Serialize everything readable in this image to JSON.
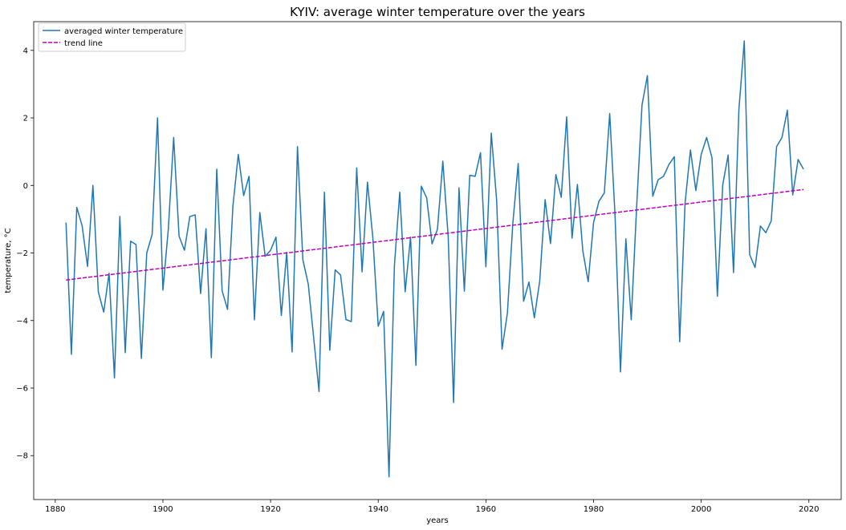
{
  "chart_data": {
    "type": "line",
    "title": "KYIV: average winter temperature over the years",
    "xlabel": "years",
    "ylabel": "temperature, °C",
    "xlim": [
      1876,
      2026
    ],
    "ylim": [
      -9.3,
      4.85
    ],
    "x_ticks": [
      1880,
      1900,
      1920,
      1940,
      1960,
      1980,
      2000,
      2020
    ],
    "x_tick_labels": [
      "1880",
      "1900",
      "1920",
      "1940",
      "1960",
      "1980",
      "2000",
      "2020"
    ],
    "y_ticks": [
      4,
      2,
      0,
      -2,
      -4,
      -6,
      -8
    ],
    "y_tick_labels": [
      "4",
      "2",
      "0",
      "−2",
      "−4",
      "−6",
      "−8"
    ],
    "grid": false,
    "legend_position": "upper-left",
    "series": [
      {
        "name": "averaged winter temperature",
        "color": "#1f77b4",
        "style": "solid",
        "x": [
          1882,
          1883,
          1884,
          1885,
          1886,
          1887,
          1888,
          1889,
          1890,
          1891,
          1892,
          1893,
          1894,
          1895,
          1896,
          1897,
          1898,
          1899,
          1900,
          1901,
          1902,
          1903,
          1904,
          1905,
          1906,
          1907,
          1908,
          1909,
          1910,
          1911,
          1912,
          1913,
          1914,
          1915,
          1916,
          1917,
          1918,
          1919,
          1920,
          1921,
          1922,
          1923,
          1924,
          1925,
          1926,
          1927,
          1928,
          1929,
          1930,
          1931,
          1932,
          1933,
          1934,
          1935,
          1936,
          1937,
          1938,
          1939,
          1940,
          1941,
          1942,
          1943,
          1944,
          1945,
          1946,
          1947,
          1948,
          1949,
          1950,
          1951,
          1952,
          1953,
          1954,
          1955,
          1956,
          1957,
          1958,
          1959,
          1960,
          1961,
          1962,
          1963,
          1964,
          1965,
          1966,
          1967,
          1968,
          1969,
          1970,
          1971,
          1972,
          1973,
          1974,
          1975,
          1976,
          1977,
          1978,
          1979,
          1980,
          1981,
          1982,
          1983,
          1984,
          1985,
          1986,
          1987,
          1988,
          1989,
          1990,
          1991,
          1992,
          1993,
          1994,
          1995,
          1996,
          1997,
          1998,
          1999,
          2000,
          2001,
          2002,
          2003,
          2004,
          2005,
          2006,
          2007,
          2008,
          2009,
          2010,
          2011,
          2012,
          2013,
          2014,
          2015,
          2016,
          2017,
          2018,
          2019
        ],
        "values": [
          -1.1,
          -5.0,
          -0.65,
          -1.2,
          -2.4,
          0.0,
          -3.15,
          -3.75,
          -2.6,
          -5.7,
          -0.92,
          -4.95,
          -1.65,
          -1.75,
          -5.12,
          -2.0,
          -1.45,
          2.0,
          -3.1,
          -1.3,
          1.42,
          -1.5,
          -1.92,
          -0.92,
          -0.87,
          -3.2,
          -1.28,
          -5.1,
          0.48,
          -3.12,
          -3.67,
          -0.62,
          0.92,
          -0.3,
          0.27,
          -3.98,
          -0.8,
          -2.1,
          -1.92,
          -1.53,
          -3.85,
          -1.98,
          -4.93,
          1.15,
          -2.2,
          -2.92,
          -4.5,
          -6.1,
          -0.2,
          -4.88,
          -2.5,
          -2.65,
          -3.97,
          -4.03,
          0.52,
          -2.56,
          0.1,
          -1.55,
          -4.17,
          -3.73,
          -8.63,
          -2.38,
          -0.2,
          -3.15,
          -1.53,
          -5.33,
          -0.02,
          -0.37,
          -1.73,
          -1.3,
          0.72,
          -1.53,
          -6.43,
          -0.07,
          -3.13,
          0.3,
          0.27,
          0.97,
          -2.41,
          1.55,
          -0.45,
          -4.85,
          -3.77,
          -1.13,
          0.65,
          -3.43,
          -2.86,
          -3.92,
          -2.83,
          -0.42,
          -1.72,
          0.32,
          -0.35,
          2.03,
          -1.56,
          0.03,
          -1.93,
          -2.85,
          -1.1,
          -0.47,
          -0.22,
          2.13,
          -0.92,
          -5.52,
          -1.58,
          -3.98,
          -0.64,
          2.38,
          3.25,
          -0.32,
          0.17,
          0.27,
          0.62,
          0.85,
          -4.63,
          -0.52,
          1.05,
          -0.15,
          0.92,
          1.42,
          0.82,
          -3.28,
          0.02,
          0.9,
          -2.58,
          2.25,
          4.28,
          -2.05,
          -2.43,
          -1.2,
          -1.4,
          -1.05,
          1.15,
          1.42,
          2.23,
          -0.28,
          0.77,
          0.48
        ]
      },
      {
        "name": "trend line",
        "color": "#bf00bf",
        "style": "dashed",
        "x": [
          1882,
          2019
        ],
        "values": [
          -2.8,
          -0.12
        ]
      }
    ]
  }
}
